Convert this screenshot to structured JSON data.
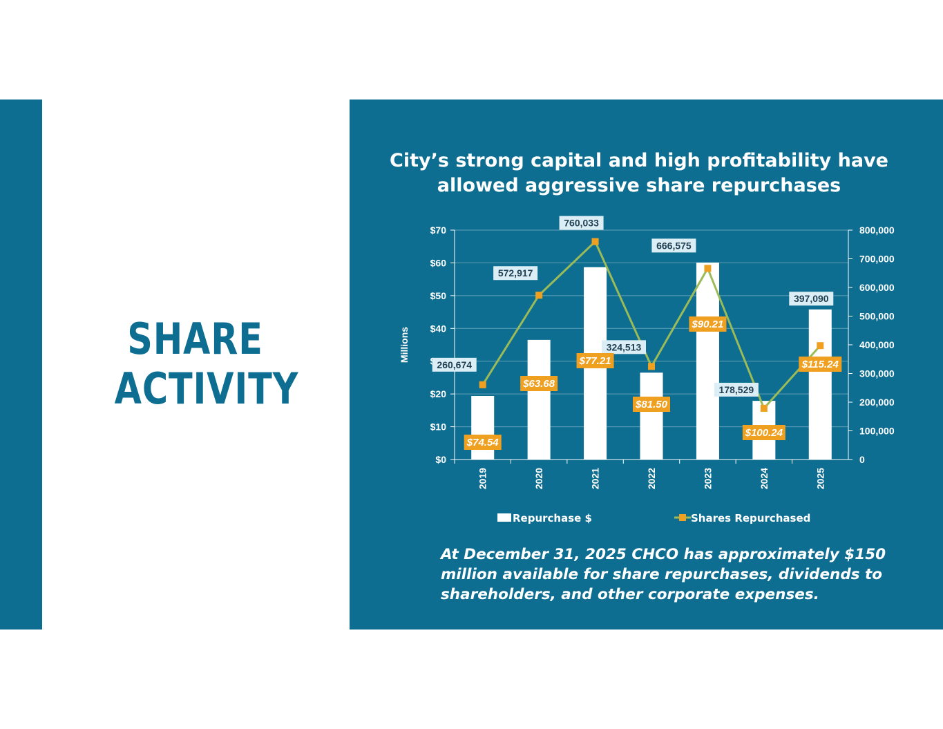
{
  "heading": {
    "line1": "SHARE",
    "line2": "ACTIVITY"
  },
  "chart_title": {
    "line1": "City’s strong capital and high profitability have",
    "line2": "allowed aggressive share repurchases"
  },
  "footnote": "At December 31, 2025 CHCO has approximately $150 million available for share repurchases, dividends to shareholders, and other corporate expenses.",
  "colors": {
    "panel": "#0e6e91",
    "bar": "#ffffff",
    "line": "#9bbb59",
    "marker": "#f0a020",
    "price_label_bg": "#f0a020",
    "share_label_bg": "#dceef5"
  },
  "chart_data": {
    "type": "bar",
    "title": "City’s strong capital and high profitability have allowed aggressive share repurchases",
    "categories": [
      "2019",
      "2020",
      "2021",
      "2022",
      "2023",
      "2024",
      "2025"
    ],
    "ylabel": "Millions",
    "ylim": [
      0,
      70
    ],
    "y2lim": [
      0,
      800000
    ],
    "yticks": [
      "$0",
      "$10",
      "$20",
      "$30",
      "$40",
      "$50",
      "$60",
      "$70"
    ],
    "y2ticks": [
      "0",
      "100,000",
      "200,000",
      "300,000",
      "400,000",
      "500,000",
      "600,000",
      "700,000",
      "800,000"
    ],
    "grid": true,
    "legend_placement": "bottom",
    "series": [
      {
        "name": "Repurchase $",
        "type": "bar",
        "axis": "left",
        "values": [
          19.4,
          36.5,
          58.7,
          26.5,
          60.1,
          17.9,
          45.8
        ]
      },
      {
        "name": "Shares Repurchased",
        "type": "line",
        "axis": "right",
        "values": [
          260674,
          572917,
          760033,
          324513,
          666575,
          178529,
          397090
        ]
      }
    ],
    "share_labels": [
      "260,674",
      "572,917",
      "760,033",
      "324,513",
      "666,575",
      "178,529",
      "397,090"
    ],
    "price_labels": [
      "$74.54",
      "$63.68",
      "$77.21",
      "$81.50",
      "$90.21",
      "$100.24",
      "$115.24"
    ]
  }
}
